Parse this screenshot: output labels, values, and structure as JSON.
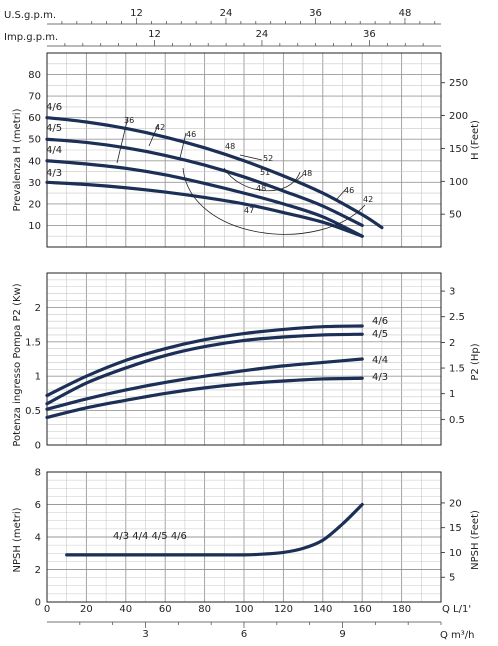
{
  "top_axes": {
    "usgpm": {
      "label": "U.S.g.p.m.",
      "ticks": [
        "12",
        "24",
        "36",
        "48"
      ],
      "values": [
        12,
        24,
        36,
        48
      ]
    },
    "impgpm": {
      "label": "Imp.g.p.m.",
      "ticks": [
        "12",
        "24",
        "36"
      ],
      "values": [
        12,
        24,
        36
      ]
    }
  },
  "bottom_axes": {
    "lmin": {
      "label": "Q  L/1'",
      "ticks": [
        "0",
        "20",
        "40",
        "60",
        "80",
        "100",
        "120",
        "140",
        "160",
        "180"
      ],
      "values": [
        0,
        20,
        40,
        60,
        80,
        100,
        120,
        140,
        160,
        180
      ]
    },
    "m3h": {
      "label": "Q  m³/h",
      "ticks": [
        "3",
        "6",
        "9"
      ],
      "values": [
        3,
        6,
        9
      ]
    }
  },
  "chart_data": [
    {
      "type": "line",
      "ylabel": "Prevalenza H (metri)",
      "ylabel_right": "H (Feet)",
      "xlim": [
        0,
        200
      ],
      "ylim": [
        0,
        90
      ],
      "y_ticks": [
        "10",
        "20",
        "30",
        "40",
        "50",
        "60",
        "70",
        "80"
      ],
      "y_tick_values": [
        10,
        20,
        30,
        40,
        50,
        60,
        70,
        80
      ],
      "y2_ticks": [
        "50",
        "100",
        "150",
        "200",
        "250"
      ],
      "y2_tick_values": [
        50,
        100,
        150,
        200,
        250
      ],
      "series": [
        {
          "name": "4/6",
          "x": [
            0,
            20,
            40,
            60,
            80,
            100,
            120,
            140,
            160,
            170
          ],
          "y": [
            60,
            58,
            55,
            51,
            46,
            40,
            33,
            25,
            15,
            9
          ]
        },
        {
          "name": "4/5",
          "x": [
            0,
            20,
            40,
            60,
            80,
            100,
            120,
            140,
            160
          ],
          "y": [
            50,
            48.5,
            46,
            42.5,
            38,
            32.5,
            26,
            19,
            10
          ]
        },
        {
          "name": "4/4",
          "x": [
            0,
            20,
            40,
            60,
            80,
            100,
            120,
            140,
            160
          ],
          "y": [
            40,
            38.5,
            36.5,
            33.5,
            29.5,
            25,
            20,
            14,
            5
          ]
        },
        {
          "name": "4/3",
          "x": [
            0,
            20,
            40,
            60,
            80,
            100,
            120,
            140,
            160
          ],
          "y": [
            30,
            29,
            27.5,
            25.5,
            23,
            20,
            16,
            11.5,
            5
          ]
        }
      ],
      "efficiency_labels": [
        "36",
        "42",
        "46",
        "48",
        "52",
        "51",
        "48",
        "48",
        "46",
        "42",
        "47"
      ]
    },
    {
      "type": "line",
      "ylabel": "Potenza ingresso Pompa P2 (Kw)",
      "ylabel_right": "P2 (Hp)",
      "xlim": [
        0,
        200
      ],
      "ylim": [
        0,
        2.5
      ],
      "y_ticks": [
        "0",
        "0.5",
        "1",
        "1.5",
        "2"
      ],
      "y_tick_values": [
        0,
        0.5,
        1,
        1.5,
        2
      ],
      "y2_ticks": [
        "0.5",
        "1",
        "1.5",
        "2",
        "2.5",
        "3"
      ],
      "y2_tick_values": [
        0.5,
        1,
        1.5,
        2,
        2.5,
        3
      ],
      "series": [
        {
          "name": "4/6",
          "x": [
            0,
            20,
            40,
            60,
            80,
            100,
            120,
            140,
            160
          ],
          "y": [
            0.72,
            1.0,
            1.23,
            1.4,
            1.53,
            1.62,
            1.68,
            1.72,
            1.73
          ]
        },
        {
          "name": "4/5",
          "x": [
            0,
            20,
            40,
            60,
            80,
            100,
            120,
            140,
            160
          ],
          "y": [
            0.6,
            0.9,
            1.12,
            1.3,
            1.43,
            1.52,
            1.57,
            1.6,
            1.61
          ]
        },
        {
          "name": "4/4",
          "x": [
            0,
            20,
            40,
            60,
            80,
            100,
            120,
            140,
            160
          ],
          "y": [
            0.52,
            0.67,
            0.8,
            0.91,
            1.0,
            1.08,
            1.15,
            1.2,
            1.25
          ]
        },
        {
          "name": "4/3",
          "x": [
            0,
            20,
            40,
            60,
            80,
            100,
            120,
            140,
            160
          ],
          "y": [
            0.4,
            0.54,
            0.65,
            0.75,
            0.83,
            0.89,
            0.93,
            0.96,
            0.97
          ]
        }
      ]
    },
    {
      "type": "line",
      "ylabel": "NPSH (metri)",
      "ylabel_right": "NPSH (Feet)",
      "xlim": [
        0,
        200
      ],
      "ylim": [
        0,
        8
      ],
      "y_ticks": [
        "0",
        "2",
        "4",
        "6",
        "8"
      ],
      "y_tick_values": [
        0,
        2,
        4,
        6,
        8
      ],
      "y2_ticks": [
        "5",
        "10",
        "15",
        "20"
      ],
      "y2_tick_values": [
        5,
        10,
        15,
        20
      ],
      "series": [
        {
          "name": "4/3 4/4 4/5 4/6",
          "x": [
            10,
            40,
            80,
            100,
            110,
            120,
            130,
            140,
            150,
            160
          ],
          "y": [
            2.9,
            2.9,
            2.9,
            2.9,
            2.95,
            3.05,
            3.3,
            3.8,
            4.8,
            6.0
          ]
        }
      ],
      "legend_text": "4/3  4/4  4/5  4/6"
    }
  ]
}
